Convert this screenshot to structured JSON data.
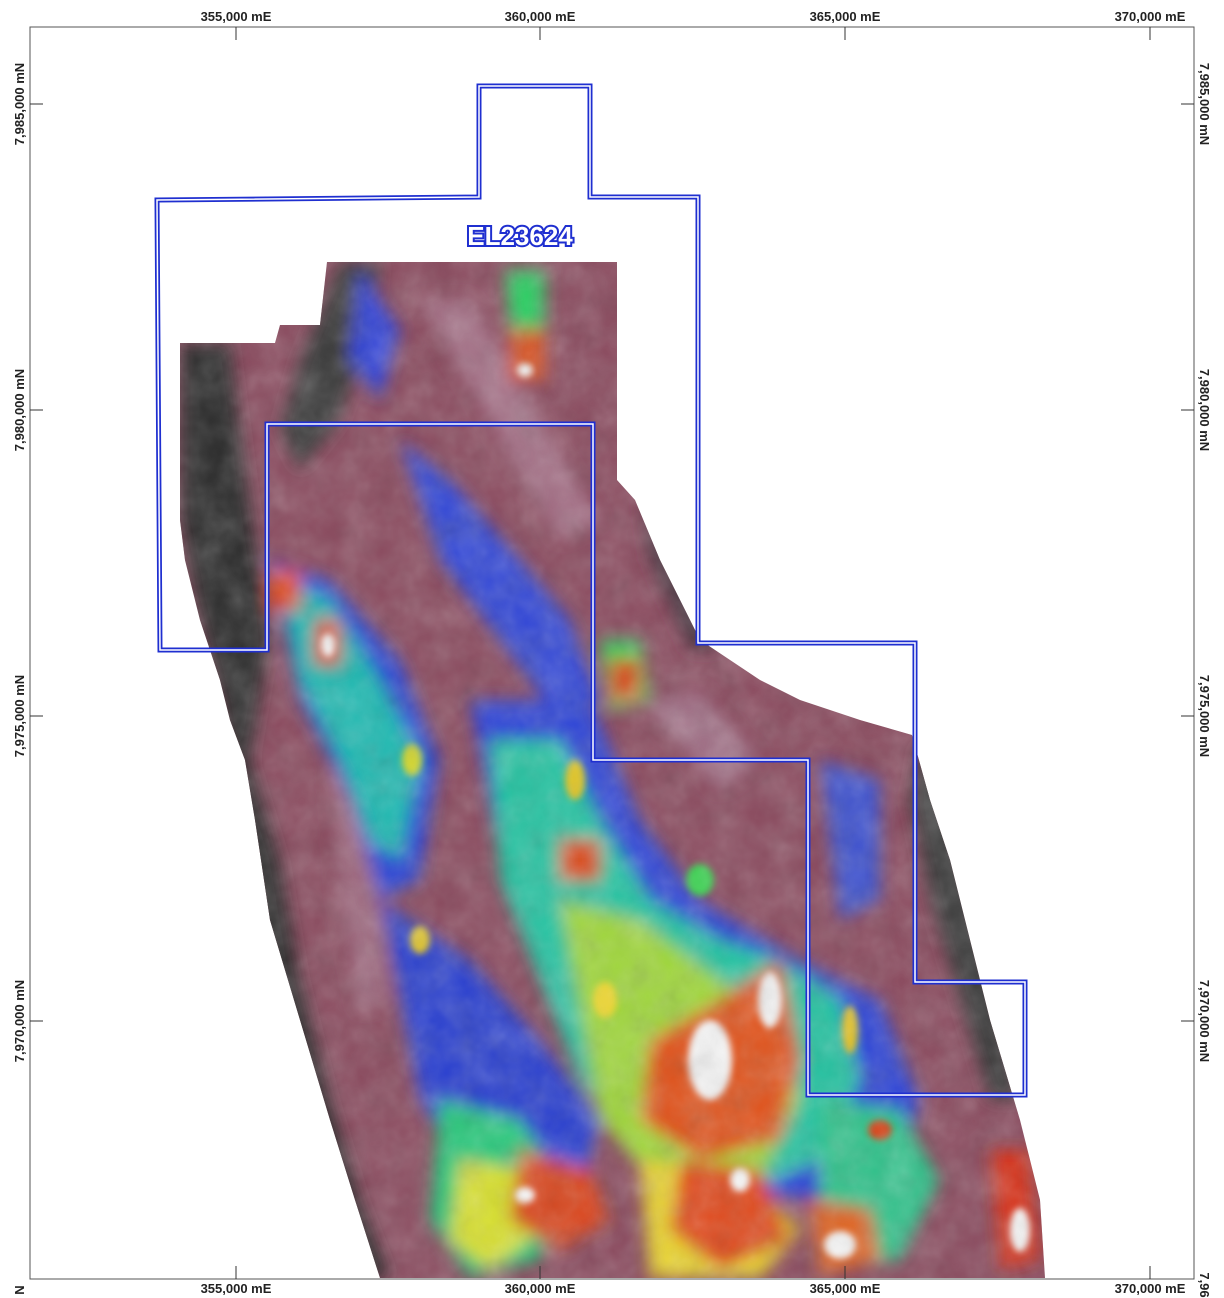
{
  "map": {
    "tenement_label": "EL23624",
    "boundary_color": "#1f2fd0",
    "easting_top": [
      "355,000 mE",
      "360,000 mE",
      "365,000 mE",
      "370,000 mE"
    ],
    "easting_bottom": [
      "355,000 mE",
      "360,000 mE",
      "365,000 mE",
      "370,000 mE"
    ],
    "northing_left": [
      "7,985,000 mN",
      "7,980,000 mN",
      "7,975,000 mN",
      "7,970,000 mN"
    ],
    "northing_right": [
      "7,985,000 mN",
      "7,980,000 mN",
      "7,975,000 mN",
      "7,970,000 mN"
    ],
    "corner_fragment_bottom_left": "N",
    "corner_fragment_bottom_right": "7,96",
    "raster_palette": [
      "#3a3a3a",
      "#7a3e52",
      "#a36b80",
      "#2e3fd8",
      "#1fb5c8",
      "#37d43c",
      "#f2e21a",
      "#e24a1a",
      "#c01818",
      "#f4f4f4"
    ]
  }
}
